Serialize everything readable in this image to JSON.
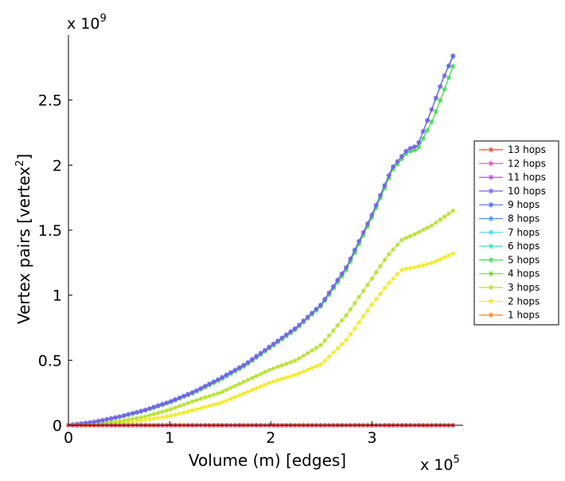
{
  "chart_data": {
    "type": "line",
    "title": "",
    "xlabel": "Volume (m) [edges]",
    "ylabel_main": "Vertex pairs [vertex",
    "ylabel_sup": "2",
    "ylabel_end": "]",
    "x_multiplier": {
      "base": "x 10",
      "exp": "5"
    },
    "y_multiplier": {
      "base": "x 10",
      "exp": "9"
    },
    "xlim": [
      0,
      3.9
    ],
    "ylim": [
      0,
      3.0
    ],
    "x_ticks": [
      0,
      1,
      2,
      3
    ],
    "x_tick_labels": [
      "0",
      "1",
      "2",
      "3"
    ],
    "y_ticks": [
      0,
      0.5,
      1,
      1.5,
      2,
      2.5
    ],
    "y_tick_labels": [
      "0",
      "0.5",
      "1",
      "1.5",
      "2",
      "2.5"
    ],
    "grid": false,
    "legend_position": "right",
    "series": [
      {
        "name": "13 hops",
        "color": "#f04a3a",
        "x": [
          0,
          0.5,
          1,
          1.5,
          2,
          2.5,
          3,
          3.5,
          3.8
        ],
        "y": [
          0,
          0,
          0,
          0,
          0,
          0,
          0,
          0,
          0
        ]
      },
      {
        "name": "12 hops",
        "color": "#e84bc2",
        "x": [
          0,
          0.5,
          1,
          1.5,
          2,
          2.5,
          3,
          3.5,
          3.8
        ],
        "y": [
          0,
          0,
          0,
          0,
          0,
          0,
          0,
          0,
          0
        ]
      },
      {
        "name": "11 hops",
        "color": "#bb52e6",
        "x": [
          0,
          0.5,
          1,
          1.5,
          2,
          2.5,
          3,
          3.5,
          3.8
        ],
        "y": [
          0,
          0,
          0,
          0,
          0,
          0,
          0,
          0,
          0
        ]
      },
      {
        "name": "10 hops",
        "color": "#7a5fe8",
        "x": [
          0,
          0.25,
          0.5,
          0.75,
          1,
          1.25,
          1.5,
          1.75,
          2,
          2.25,
          2.5,
          2.75,
          3,
          3.2,
          3.35,
          3.45,
          3.6,
          3.7,
          3.8
        ],
        "y": [
          0,
          0.025,
          0.065,
          0.115,
          0.18,
          0.26,
          0.36,
          0.47,
          0.61,
          0.75,
          0.93,
          1.22,
          1.62,
          1.98,
          2.12,
          2.15,
          2.45,
          2.66,
          2.84
        ]
      },
      {
        "name": "9 hops",
        "color": "#4a6ae8",
        "x": [
          0,
          0.25,
          0.5,
          0.75,
          1,
          1.25,
          1.5,
          1.75,
          2,
          2.25,
          2.5,
          2.75,
          3,
          3.2,
          3.35,
          3.45,
          3.6,
          3.7,
          3.8
        ],
        "y": [
          0,
          0.025,
          0.065,
          0.115,
          0.18,
          0.26,
          0.36,
          0.47,
          0.61,
          0.75,
          0.93,
          1.22,
          1.62,
          1.98,
          2.12,
          2.15,
          2.45,
          2.66,
          2.84
        ]
      },
      {
        "name": "8 hops",
        "color": "#4a8ee8",
        "x": [
          0,
          0.25,
          0.5,
          0.75,
          1,
          1.25,
          1.5,
          1.75,
          2,
          2.25,
          2.5,
          2.75,
          3,
          3.2,
          3.35,
          3.45,
          3.6,
          3.7,
          3.8
        ],
        "y": [
          0,
          0.025,
          0.065,
          0.115,
          0.18,
          0.26,
          0.36,
          0.47,
          0.61,
          0.75,
          0.93,
          1.22,
          1.62,
          1.98,
          2.12,
          2.15,
          2.45,
          2.66,
          2.84
        ]
      },
      {
        "name": "7 hops",
        "color": "#4ad0e8",
        "x": [
          0,
          0.25,
          0.5,
          0.75,
          1,
          1.25,
          1.5,
          1.75,
          2,
          2.25,
          2.5,
          2.75,
          3,
          3.2,
          3.35,
          3.45,
          3.6,
          3.7,
          3.8
        ],
        "y": [
          0,
          0.025,
          0.065,
          0.115,
          0.18,
          0.26,
          0.36,
          0.47,
          0.61,
          0.75,
          0.93,
          1.22,
          1.62,
          1.98,
          2.12,
          2.15,
          2.45,
          2.66,
          2.84
        ]
      },
      {
        "name": "6 hops",
        "color": "#4ae0a8",
        "x": [
          0,
          0.25,
          0.5,
          0.75,
          1,
          1.25,
          1.5,
          1.75,
          2,
          2.25,
          2.5,
          2.75,
          3,
          3.2,
          3.35,
          3.45,
          3.6,
          3.7,
          3.8
        ],
        "y": [
          0,
          0.025,
          0.065,
          0.115,
          0.18,
          0.26,
          0.36,
          0.47,
          0.61,
          0.75,
          0.93,
          1.22,
          1.62,
          1.98,
          2.12,
          2.15,
          2.45,
          2.66,
          2.83
        ]
      },
      {
        "name": "5 hops",
        "color": "#44dd55",
        "x": [
          0,
          0.25,
          0.5,
          0.75,
          1,
          1.25,
          1.5,
          1.75,
          2,
          2.25,
          2.5,
          2.75,
          3,
          3.2,
          3.35,
          3.45,
          3.6,
          3.7,
          3.8
        ],
        "y": [
          0,
          0.024,
          0.063,
          0.112,
          0.175,
          0.255,
          0.35,
          0.46,
          0.6,
          0.74,
          0.92,
          1.2,
          1.6,
          1.96,
          2.1,
          2.12,
          2.35,
          2.55,
          2.76
        ]
      },
      {
        "name": "4 hops",
        "color": "#7ad434",
        "x": [
          0,
          0.25,
          0.5,
          0.75,
          1,
          1.25,
          1.5,
          1.75,
          2,
          2.25,
          2.5,
          2.75,
          3,
          3.2,
          3.35,
          3.45,
          3.6,
          3.7,
          3.8
        ],
        "y": [
          0,
          0.024,
          0.063,
          0.112,
          0.175,
          0.255,
          0.35,
          0.46,
          0.6,
          0.74,
          0.92,
          1.2,
          1.6,
          1.96,
          2.1,
          2.12,
          2.35,
          2.55,
          2.76
        ]
      },
      {
        "name": "3 hops",
        "color": "#b5e02c",
        "x": [
          0,
          0.25,
          0.5,
          0.75,
          1,
          1.25,
          1.5,
          1.75,
          2,
          2.25,
          2.5,
          2.75,
          3,
          3.15,
          3.3,
          3.4,
          3.6,
          3.8
        ],
        "y": [
          0,
          0.01,
          0.03,
          0.065,
          0.12,
          0.19,
          0.25,
          0.34,
          0.43,
          0.5,
          0.62,
          0.85,
          1.13,
          1.3,
          1.43,
          1.46,
          1.54,
          1.65
        ]
      },
      {
        "name": "2 hops",
        "color": "#f2ea24",
        "x": [
          0,
          0.25,
          0.5,
          0.75,
          1,
          1.25,
          1.5,
          1.75,
          2,
          2.25,
          2.5,
          2.75,
          3,
          3.15,
          3.3,
          3.4,
          3.6,
          3.8
        ],
        "y": [
          0,
          0.005,
          0.015,
          0.04,
          0.07,
          0.12,
          0.17,
          0.25,
          0.33,
          0.39,
          0.47,
          0.66,
          0.93,
          1.08,
          1.2,
          1.21,
          1.25,
          1.32
        ]
      },
      {
        "name": "1 hops",
        "color": "#f78a2a",
        "x": [
          0,
          0.5,
          1,
          1.5,
          2,
          2.5,
          3,
          3.5,
          3.8
        ],
        "y": [
          0,
          0,
          0,
          0,
          0,
          0,
          0,
          0,
          0
        ]
      }
    ]
  }
}
